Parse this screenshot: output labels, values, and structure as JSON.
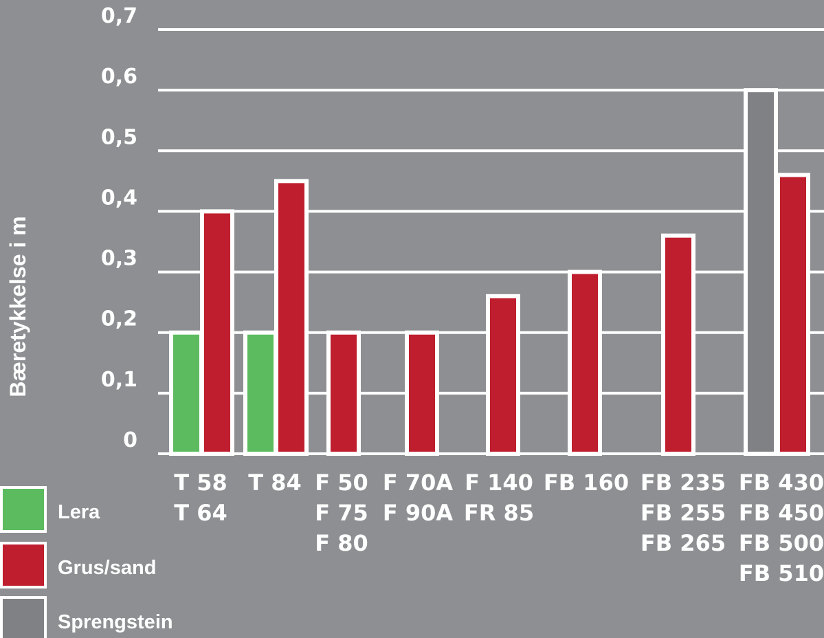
{
  "chart_data": {
    "type": "bar",
    "ylabel": "Bæretykkelse i m",
    "ylim": [
      0,
      0.7
    ],
    "yticks": [
      {
        "value": 0,
        "label": "0"
      },
      {
        "value": 0.1,
        "label": "0,1"
      },
      {
        "value": 0.2,
        "label": "0,2"
      },
      {
        "value": 0.3,
        "label": "0,3"
      },
      {
        "value": 0.4,
        "label": "0,4"
      },
      {
        "value": 0.5,
        "label": "0,5"
      },
      {
        "value": 0.6,
        "label": "0,6"
      },
      {
        "value": 0.7,
        "label": "0,7"
      }
    ],
    "grid": true,
    "legend_position": "bottom-left",
    "categories": [
      {
        "lines": [
          "T 58",
          "T 64"
        ]
      },
      {
        "lines": [
          "T 84"
        ]
      },
      {
        "lines": [
          "F 50",
          "F 75",
          "F 80"
        ]
      },
      {
        "lines": [
          "F 70A",
          "F 90A"
        ]
      },
      {
        "lines": [
          "F 140",
          "FR 85"
        ]
      },
      {
        "lines": [
          "FB 160"
        ]
      },
      {
        "lines": [
          "FB 235",
          "FB 255",
          "FB 265"
        ]
      },
      {
        "lines": [
          "FB 430",
          "FB 450",
          "FB 500",
          "FB 510"
        ]
      }
    ],
    "series": [
      {
        "name": "Lera",
        "color": "#5cbb5f",
        "values": [
          0.2,
          0.2,
          null,
          null,
          null,
          null,
          null,
          null
        ]
      },
      {
        "name": "Grus/sand",
        "color": "#be1e2d",
        "values": [
          0.4,
          0.45,
          0.2,
          0.2,
          0.26,
          0.3,
          0.36,
          0.46
        ]
      },
      {
        "name": "Sprengstein",
        "color": "#808184",
        "values": [
          null,
          null,
          null,
          null,
          null,
          null,
          null,
          0.6
        ]
      }
    ]
  }
}
